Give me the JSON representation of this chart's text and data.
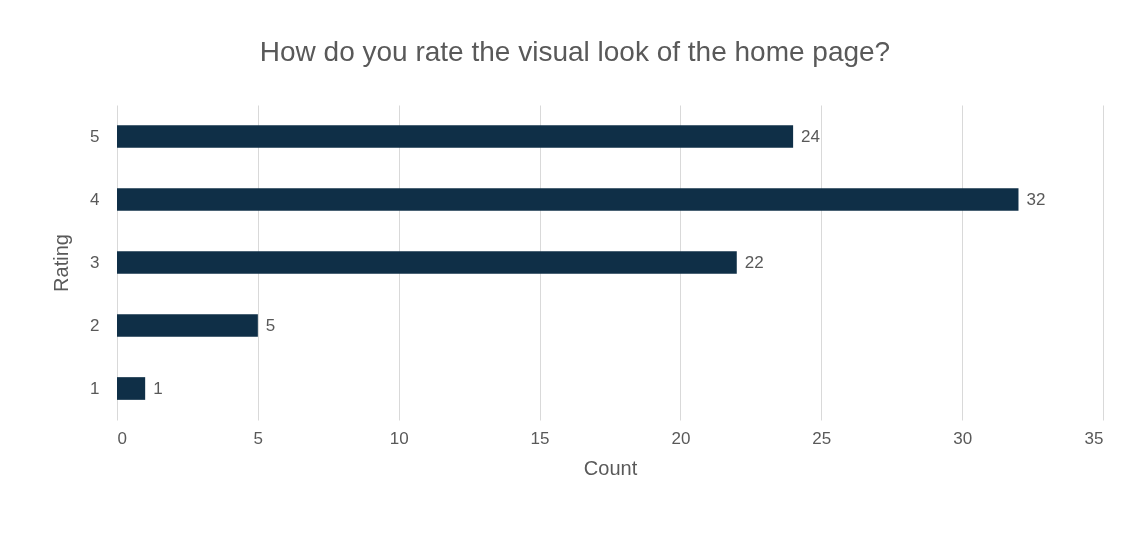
{
  "chart_data": {
    "type": "bar",
    "orientation": "horizontal",
    "title": "How do you rate the visual look of the home page?",
    "xlabel": "Count",
    "ylabel": "Rating",
    "categories": [
      "5",
      "4",
      "3",
      "2",
      "1"
    ],
    "values": [
      24,
      32,
      22,
      5,
      1
    ],
    "color": "#0f2f47",
    "xlim": [
      0,
      35
    ],
    "xticks": [
      0,
      5,
      10,
      15,
      20,
      25,
      30,
      35
    ],
    "grid": "x",
    "data_labels": true
  }
}
